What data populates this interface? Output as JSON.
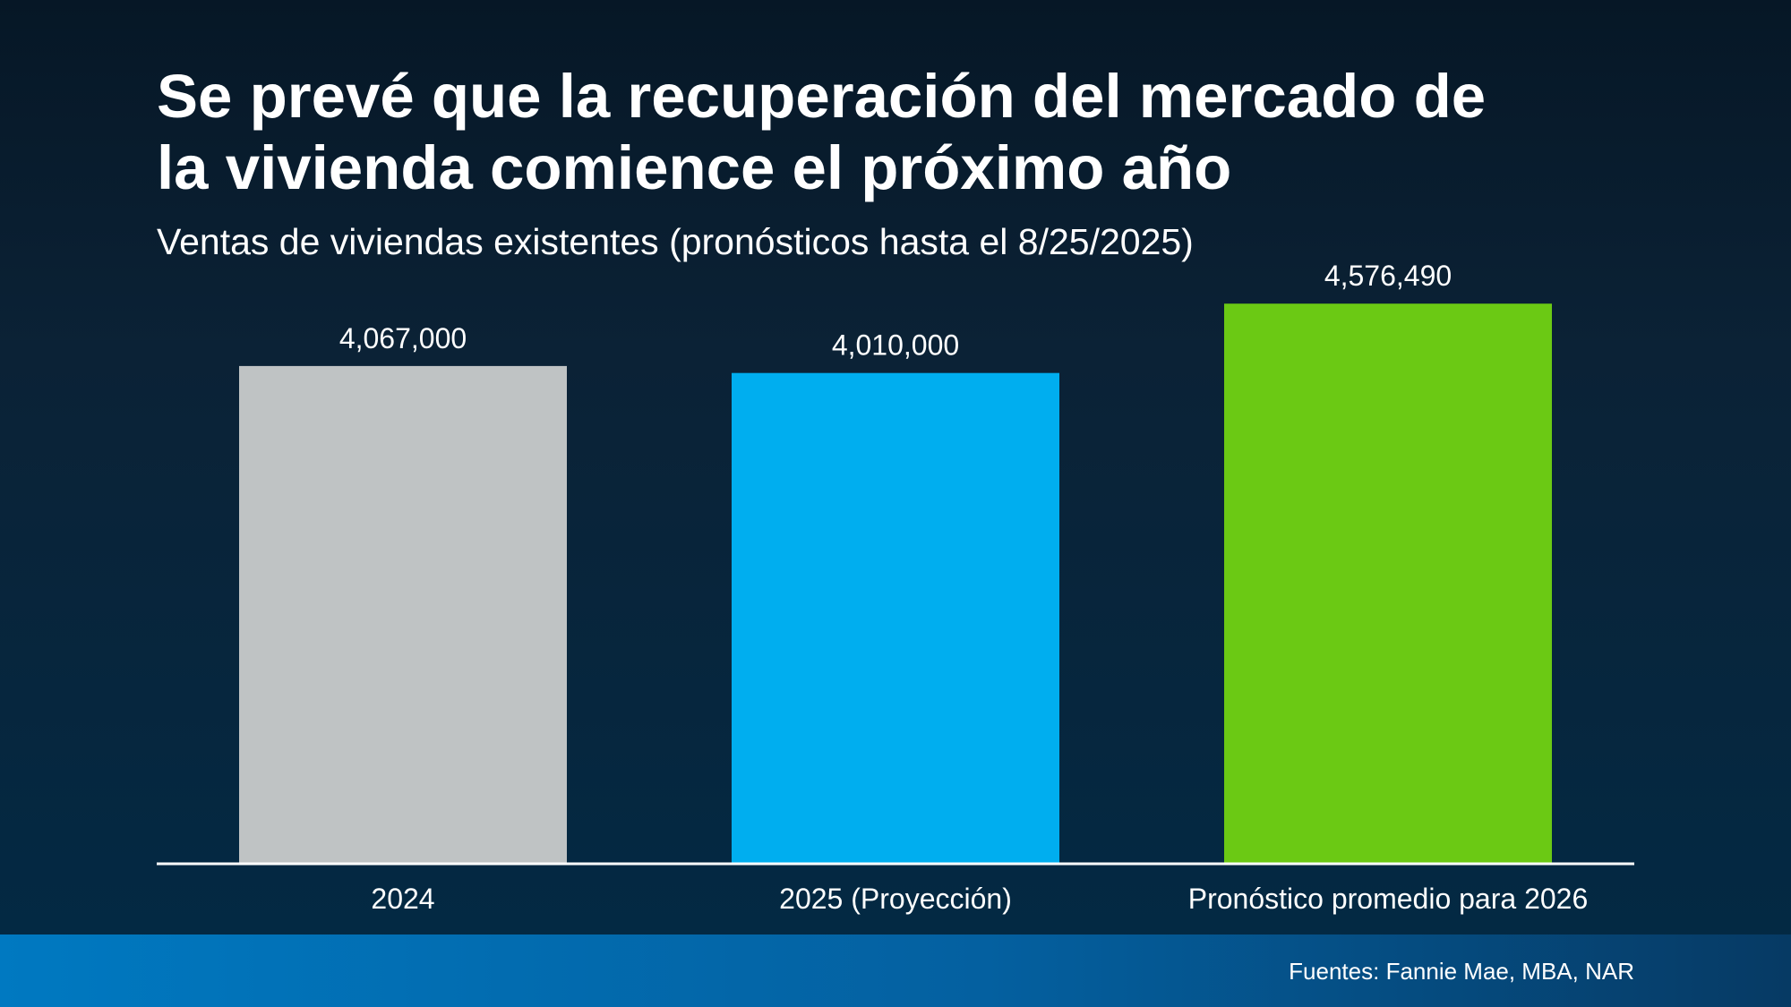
{
  "title": {
    "line1": "Se prevé que la recuperación del mercado de",
    "line2": "la vivienda comience el próximo año"
  },
  "subtitle": "Ventas de viviendas existentes (pronósticos hasta el 8/25/2025)",
  "footer": {
    "source": "Fuentes: Fannie Mae, MBA, NAR"
  },
  "colors": {
    "bar_2024": "#bfc3c4",
    "bar_2025": "#00aeef",
    "bar_2026": "#6bc914",
    "axis": "#ffffff"
  },
  "chart_data": {
    "type": "bar",
    "title": "Se prevé que la recuperación del mercado de la vivienda comience el próximo año",
    "subtitle": "Ventas de viviendas existentes (pronósticos hasta el 8/25/2025)",
    "categories": [
      "2024",
      "2025 (Proyección)",
      "Pronóstico promedio para 2026"
    ],
    "values": [
      4067000,
      4010000,
      4576490
    ],
    "value_labels": [
      "4,067,000",
      "4,010,000",
      "4,576,490"
    ],
    "colors": [
      "#bfc3c4",
      "#00aeef",
      "#6bc914"
    ],
    "xlabel": "",
    "ylabel": "",
    "ylim": [
      0,
      4900000
    ],
    "grid": false,
    "legend": "none"
  }
}
